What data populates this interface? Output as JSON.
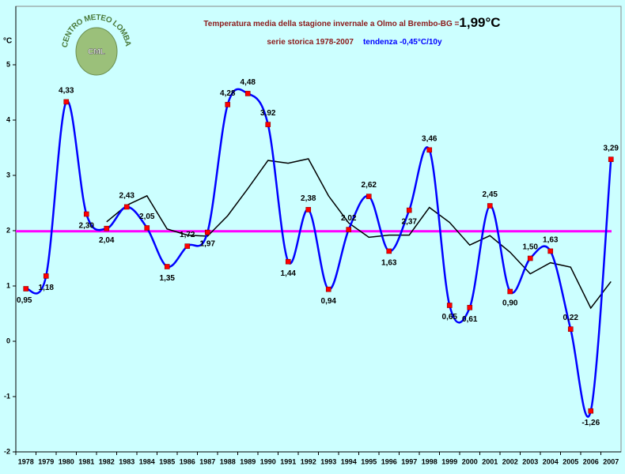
{
  "chart_data": {
    "type": "line",
    "title": "Temperatura media della stagione invernale a Olmo al Brembo-BG =",
    "title_value": "1,99°C",
    "subtitle": "serie storica 1978-2007",
    "trend": "tendenza -0,45°C/10y",
    "y_label": "°C",
    "logo": {
      "ring": "CENTRO METEO LOMBARDO",
      "center": "CML"
    },
    "categories": [
      "1978",
      "1979",
      "1980",
      "1981",
      "1982",
      "1983",
      "1984",
      "1985",
      "1986",
      "1987",
      "1988",
      "1989",
      "1990",
      "1991",
      "1992",
      "1993",
      "1994",
      "1995",
      "1996",
      "1997",
      "1998",
      "1999",
      "2000",
      "2001",
      "2002",
      "2003",
      "2004",
      "2005",
      "2006",
      "2007"
    ],
    "series": [
      {
        "color": "#0000ff",
        "marker_color": "#ff0000",
        "values": [
          0.95,
          1.18,
          4.33,
          2.3,
          2.04,
          2.43,
          2.05,
          1.35,
          1.72,
          1.97,
          4.28,
          4.48,
          3.92,
          1.44,
          2.38,
          0.94,
          2.02,
          2.62,
          1.63,
          2.37,
          3.46,
          0.65,
          0.61,
          2.45,
          0.9,
          1.5,
          1.63,
          0.22,
          -1.26,
          3.29
        ],
        "value_labels": [
          "0,95",
          "1,18",
          "4,33",
          "2,30",
          "2,04",
          "2,43",
          "2,05",
          "1,35",
          "1,72",
          "1,97",
          "4,28",
          "4,48",
          "3,92",
          "1,44",
          "2,38",
          "0,94",
          "2,02",
          "2,62",
          "1,63",
          "2,37",
          "3,46",
          "0,65",
          "0,61",
          "2,45",
          "0,90",
          "1,50",
          "1,63",
          "0,22",
          "-1,26",
          "3,29"
        ],
        "smooth": true
      },
      {
        "color": "#000000",
        "values": [
          null,
          null,
          null,
          null,
          2.16,
          2.46,
          2.63,
          2.03,
          1.92,
          1.9,
          2.27,
          2.76,
          3.27,
          3.22,
          3.3,
          2.63,
          2.14,
          1.88,
          1.92,
          1.92,
          2.42,
          2.15,
          1.74,
          1.91,
          1.61,
          1.22,
          1.42,
          1.34,
          0.6,
          1.08
        ]
      }
    ],
    "reference_line": {
      "value": 1.99,
      "color": "#ff00ff"
    },
    "ylim": [
      -2,
      6
    ],
    "yticks": [
      -2,
      -1,
      0,
      1,
      2,
      3,
      4,
      5
    ],
    "grid": false
  }
}
